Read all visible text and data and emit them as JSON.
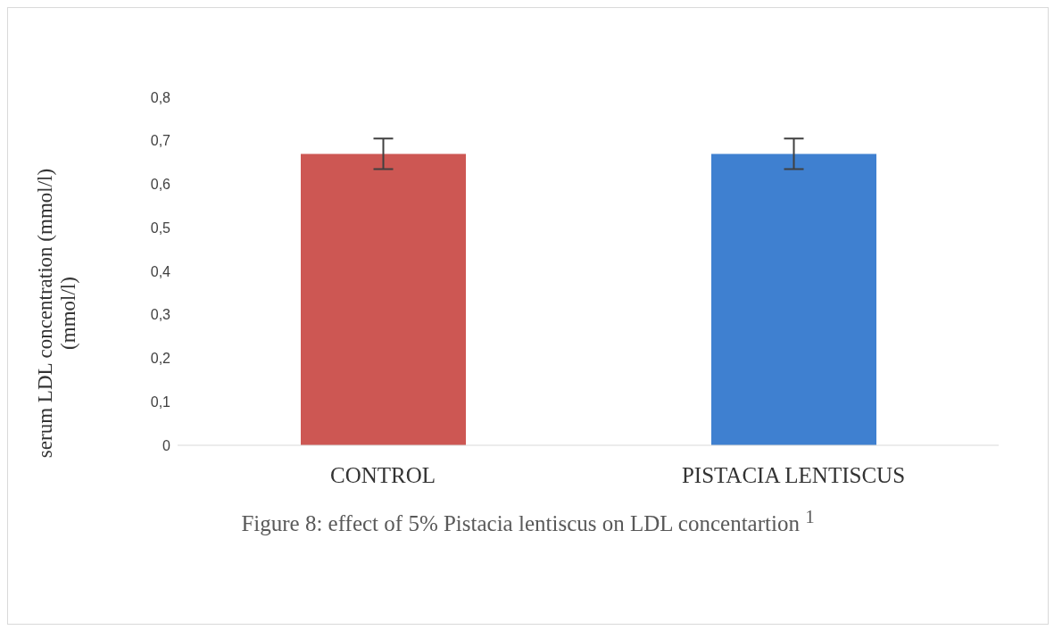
{
  "chart_data": {
    "type": "bar",
    "categories": [
      "CONTROL",
      "PISTACIA LENTISCUS"
    ],
    "values": [
      0.67,
      0.67
    ],
    "colors": [
      "#cd5753",
      "#3f80d0"
    ],
    "errors": [
      0.035,
      0.035
    ],
    "ylabel": "serum LDL  concentration (mmol/l) (mmol/l)",
    "ylim": [
      0,
      0.8
    ],
    "yticks": [
      0,
      {
        "value": 0.1,
        "label": "0,1"
      },
      {
        "value": 0.2,
        "label": "0,2"
      },
      {
        "value": 0.3,
        "label": "0,3"
      },
      {
        "value": 0.4,
        "label": "0,4"
      },
      {
        "value": 0.5,
        "label": "0,5"
      },
      {
        "value": 0.6,
        "label": "0,6"
      },
      {
        "value": 0.7,
        "label": "0,7"
      },
      {
        "value": 0.8,
        "label": "0,8"
      }
    ],
    "grid": false,
    "legend": false,
    "annotations": [
      "Figure 8: effect of 5% Pistacia lentiscus on LDL concentartion $^{1}$"
    ]
  }
}
